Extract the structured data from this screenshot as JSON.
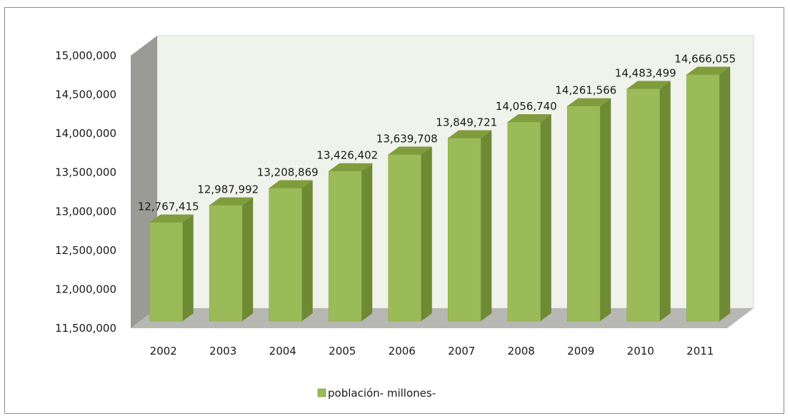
{
  "chart_data": {
    "type": "bar",
    "categories": [
      "2002",
      "2003",
      "2004",
      "2005",
      "2006",
      "2007",
      "2008",
      "2009",
      "2010",
      "2011"
    ],
    "series": [
      {
        "name": "población- millones-",
        "values": [
          12767415,
          12987992,
          13208869,
          13426402,
          13639708,
          13849721,
          14056740,
          14261566,
          14483499,
          14666055
        ],
        "labels": [
          "12,767,415",
          "12,987,992",
          "13,208,869",
          "13,426,402",
          "13,639,708",
          "13,849,721",
          "14,056,740",
          "14,261,566",
          "14,483,499",
          "14,666,055"
        ]
      }
    ],
    "y_ticks": [
      "11,500,000",
      "12,000,000",
      "12,500,000",
      "13,000,000",
      "13,500,000",
      "14,000,000",
      "14,500,000",
      "15,000,000"
    ],
    "ylim": [
      11500000,
      15000000
    ],
    "legend_position": "bottom",
    "three_d": true,
    "colors": {
      "bar_front": "#9bbb59",
      "bar_side": "#6e8a33",
      "bar_top": "#7f9d3c",
      "back_wall": "#f0f2ec",
      "side_wall": "#9a9a96",
      "floor": "#b7b7b3"
    }
  }
}
